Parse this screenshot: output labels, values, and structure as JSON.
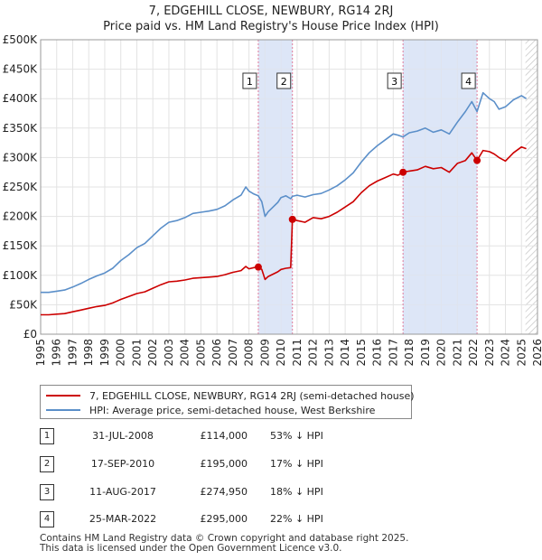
{
  "chart_data": {
    "type": "line",
    "title": "7, EDGEHILL CLOSE, NEWBURY, RG14 2RJ",
    "subtitle": "Price paid vs. HM Land Registry's House Price Index (HPI)",
    "xlim": [
      1995,
      2026
    ],
    "ylim": [
      0,
      500000
    ],
    "y_ticks": [
      {
        "value": 0,
        "label": "£0"
      },
      {
        "value": 50000,
        "label": "£50K"
      },
      {
        "value": 100000,
        "label": "£100K"
      },
      {
        "value": 150000,
        "label": "£150K"
      },
      {
        "value": 200000,
        "label": "£200K"
      },
      {
        "value": 250000,
        "label": "£250K"
      },
      {
        "value": 300000,
        "label": "£300K"
      },
      {
        "value": 350000,
        "label": "£350K"
      },
      {
        "value": 400000,
        "label": "£400K"
      },
      {
        "value": 450000,
        "label": "£450K"
      },
      {
        "value": 500000,
        "label": "£500K"
      }
    ],
    "x_ticks": [
      "1995",
      "1996",
      "1997",
      "1998",
      "1999",
      "2000",
      "2001",
      "2002",
      "2003",
      "2004",
      "2005",
      "2006",
      "2007",
      "2008",
      "2009",
      "2010",
      "2011",
      "2012",
      "2013",
      "2014",
      "2015",
      "2016",
      "2017",
      "2018",
      "2019",
      "2020",
      "2021",
      "2022",
      "2023",
      "2024",
      "2025",
      "2026"
    ],
    "shaded_periods": [
      {
        "from": 2008.58,
        "to": 2010.71
      },
      {
        "from": 2017.61,
        "to": 2022.23
      }
    ],
    "hatch_from": 2025.25,
    "colors": {
      "price": "#cc0000",
      "hpi": "#5b8fc9",
      "shade": "#dde6f7",
      "vline": "#e07a9a"
    },
    "series": [
      {
        "name": "7, EDGEHILL CLOSE, NEWBURY, RG14 2RJ (semi-detached house)",
        "x": [
          1995.0,
          1995.5,
          1996.0,
          1996.5,
          1997.0,
          1997.5,
          1998.0,
          1998.5,
          1999.0,
          1999.5,
          2000.0,
          2000.5,
          2001.0,
          2001.5,
          2002.0,
          2002.5,
          2003.0,
          2003.5,
          2004.0,
          2004.5,
          2005.0,
          2005.5,
          2006.0,
          2006.5,
          2007.0,
          2007.5,
          2007.8,
          2008.0,
          2008.3,
          2008.58,
          2008.8,
          2009.0,
          2009.2,
          2009.5,
          2009.8,
          2010.0,
          2010.3,
          2010.6,
          2010.71,
          2011.0,
          2011.5,
          2012.0,
          2012.5,
          2013.0,
          2013.5,
          2014.0,
          2014.5,
          2015.0,
          2015.5,
          2016.0,
          2016.5,
          2017.0,
          2017.3,
          2017.61,
          2018.0,
          2018.5,
          2019.0,
          2019.5,
          2020.0,
          2020.5,
          2021.0,
          2021.5,
          2021.9,
          2022.23,
          2022.6,
          2023.0,
          2023.3,
          2023.6,
          2024.0,
          2024.5,
          2025.0,
          2025.3
        ],
        "y": [
          33000,
          33000,
          34000,
          35000,
          38000,
          41000,
          44000,
          47000,
          49000,
          53000,
          59000,
          64000,
          69000,
          72000,
          78000,
          84000,
          89000,
          90000,
          92000,
          95000,
          96000,
          97000,
          98000,
          101000,
          105000,
          108000,
          115000,
          111000,
          113000,
          114000,
          110000,
          93000,
          98000,
          102000,
          106000,
          110000,
          112000,
          113000,
          195000,
          193000,
          190000,
          198000,
          196000,
          200000,
          207000,
          216000,
          225000,
          240000,
          252000,
          260000,
          266000,
          272000,
          270000,
          274950,
          277000,
          279000,
          285000,
          281000,
          283000,
          275000,
          290000,
          295000,
          308000,
          295000,
          312000,
          310000,
          306000,
          300000,
          294000,
          308000,
          318000,
          315000
        ]
      },
      {
        "name": "HPI: Average price, semi-detached house, West Berkshire",
        "x": [
          1995.0,
          1995.5,
          1996.0,
          1996.5,
          1997.0,
          1997.5,
          1998.0,
          1998.5,
          1999.0,
          1999.5,
          2000.0,
          2000.5,
          2001.0,
          2001.5,
          2002.0,
          2002.5,
          2003.0,
          2003.5,
          2004.0,
          2004.5,
          2005.0,
          2005.5,
          2006.0,
          2006.5,
          2007.0,
          2007.5,
          2007.8,
          2008.0,
          2008.3,
          2008.58,
          2008.8,
          2009.0,
          2009.2,
          2009.5,
          2009.8,
          2010.0,
          2010.3,
          2010.6,
          2010.71,
          2011.0,
          2011.5,
          2012.0,
          2012.5,
          2013.0,
          2013.5,
          2014.0,
          2014.5,
          2015.0,
          2015.5,
          2016.0,
          2016.5,
          2017.0,
          2017.3,
          2017.61,
          2018.0,
          2018.5,
          2019.0,
          2019.5,
          2020.0,
          2020.5,
          2021.0,
          2021.5,
          2021.9,
          2022.23,
          2022.6,
          2023.0,
          2023.3,
          2023.6,
          2024.0,
          2024.5,
          2025.0,
          2025.3
        ],
        "y": [
          71000,
          71000,
          73000,
          75000,
          80000,
          86000,
          93000,
          99000,
          104000,
          112000,
          125000,
          135000,
          147000,
          154000,
          167000,
          180000,
          190000,
          193000,
          198000,
          205000,
          207000,
          209000,
          212000,
          218000,
          228000,
          236000,
          250000,
          243000,
          238000,
          235000,
          225000,
          200000,
          208000,
          216000,
          224000,
          232000,
          235000,
          230000,
          234000,
          236000,
          233000,
          237000,
          239000,
          245000,
          252000,
          262000,
          274000,
          292000,
          308000,
          320000,
          330000,
          340000,
          338000,
          335000,
          342000,
          345000,
          350000,
          343000,
          347000,
          340000,
          360000,
          378000,
          395000,
          378000,
          410000,
          400000,
          395000,
          382000,
          386000,
          398000,
          405000,
          400000
        ]
      }
    ],
    "transactions": [
      {
        "num": "1",
        "x": 2008.58,
        "y": 114000,
        "date": "31-JUL-2008",
        "price": "£114,000",
        "hpi": "53% ↓ HPI"
      },
      {
        "num": "2",
        "x": 2010.71,
        "y": 195000,
        "date": "17-SEP-2010",
        "price": "£195,000",
        "hpi": "17% ↓ HPI"
      },
      {
        "num": "3",
        "x": 2017.61,
        "y": 274950,
        "date": "11-AUG-2017",
        "price": "£274,950",
        "hpi": "18% ↓ HPI"
      },
      {
        "num": "4",
        "x": 2022.23,
        "y": 295000,
        "date": "25-MAR-2022",
        "price": "£295,000",
        "hpi": "22% ↓ HPI"
      }
    ]
  },
  "legend": {
    "price_label": "7, EDGEHILL CLOSE, NEWBURY, RG14 2RJ (semi-detached house)",
    "hpi_label": "HPI: Average price, semi-detached house, West Berkshire"
  },
  "footer": {
    "line1": "Contains HM Land Registry data © Crown copyright and database right 2025.",
    "line2": "This data is licensed under the Open Government Licence v3.0."
  }
}
